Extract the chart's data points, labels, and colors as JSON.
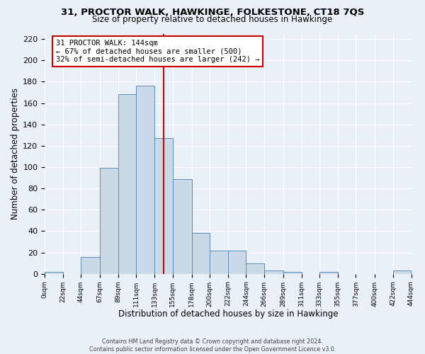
{
  "title_line1": "31, PROCTOR WALK, HAWKINGE, FOLKESTONE, CT18 7QS",
  "title_line2": "Size of property relative to detached houses in Hawkinge",
  "xlabel": "Distribution of detached houses by size in Hawkinge",
  "ylabel": "Number of detached properties",
  "annotation_line1": "31 PROCTOR WALK: 144sqm",
  "annotation_line2": "← 67% of detached houses are smaller (500)",
  "annotation_line3": "32% of semi-detached houses are larger (242) →",
  "property_size": 144,
  "bar_color": "#c9d9e8",
  "bar_edge_color": "#5b8db8",
  "vline_color": "#cc0000",
  "bg_color": "#eaf0f7",
  "annotation_box_color": "#ffffff",
  "annotation_box_edge": "#cc0000",
  "bin_edges": [
    0,
    22,
    44,
    67,
    89,
    111,
    133,
    155,
    178,
    200,
    222,
    244,
    266,
    289,
    311,
    333,
    355,
    377,
    400,
    422,
    444
  ],
  "bin_heights": [
    2,
    0,
    16,
    99,
    168,
    176,
    127,
    89,
    38,
    22,
    22,
    10,
    3,
    2,
    0,
    2,
    0,
    0,
    0,
    3
  ],
  "ylim": [
    0,
    225
  ],
  "yticks": [
    0,
    20,
    40,
    60,
    80,
    100,
    120,
    140,
    160,
    180,
    200,
    220
  ],
  "tick_labels": [
    "0sqm",
    "22sqm",
    "44sqm",
    "67sqm",
    "89sqm",
    "111sqm",
    "133sqm",
    "155sqm",
    "178sqm",
    "200sqm",
    "222sqm",
    "244sqm",
    "266sqm",
    "289sqm",
    "311sqm",
    "333sqm",
    "355sqm",
    "377sqm",
    "400sqm",
    "422sqm",
    "444sqm"
  ],
  "footer_line1": "Contains HM Land Registry data © Crown copyright and database right 2024.",
  "footer_line2": "Contains public sector information licensed under the Open Government Licence v3.0."
}
